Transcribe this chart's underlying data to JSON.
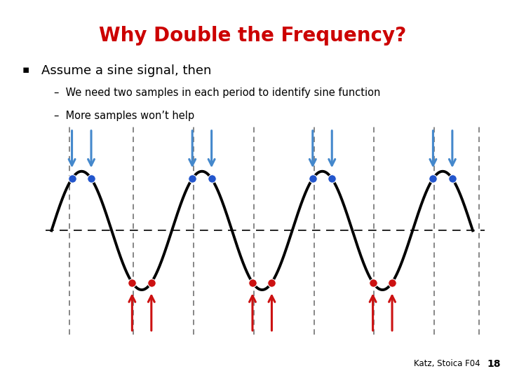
{
  "title": "Why Double the Frequency?",
  "title_color": "#cc0000",
  "title_fontsize": 20,
  "bullet_text": "Assume a sine signal, then",
  "sub1": "We need two samples in each period to identify sine function",
  "sub2": "More samples won’t help",
  "footnote": "Katz, Stoica F04",
  "footnote_page": "18",
  "sine_color": "#000000",
  "sine_lw": 2.8,
  "dashed_color": "#666666",
  "blue_arrow_color": "#4488cc",
  "red_arrow_color": "#cc1111",
  "blue_dot_color": "#2255cc",
  "red_dot_color": "#cc1111",
  "dot_size": 70,
  "amplitude": 1.0,
  "n_cycles": 3.5,
  "omega": 6.283185307
}
